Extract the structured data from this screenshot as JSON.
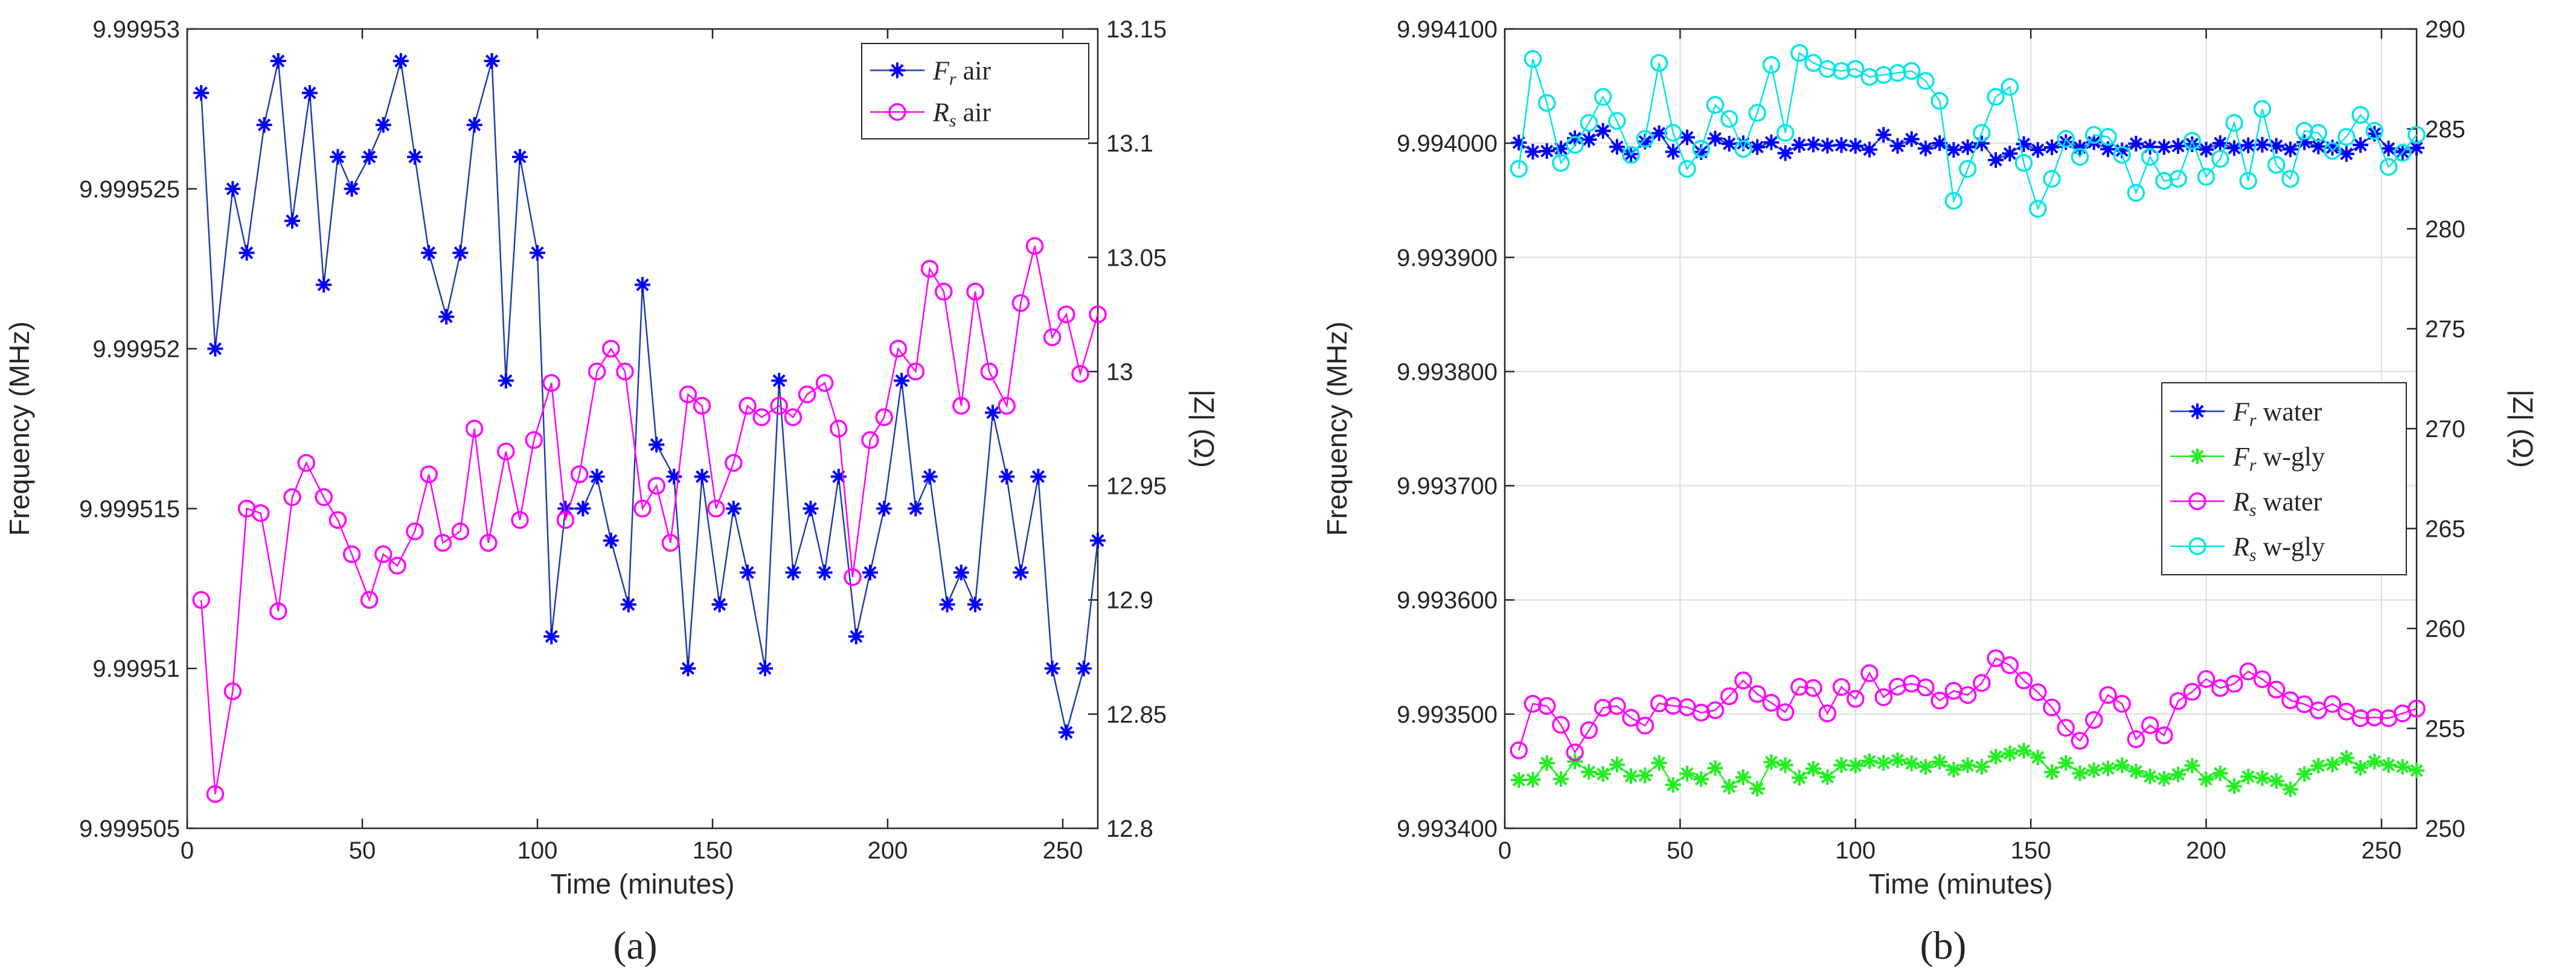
{
  "chart_data": [
    {
      "panel": "a",
      "type": "line",
      "xlabel": "Time (minutes)",
      "ylabel": "Frequency (MHz)",
      "y2label": "|Z| (Ω)",
      "xlim": [
        0,
        260
      ],
      "ylim": [
        9.999505,
        9.99953
      ],
      "y2lim": [
        12.8,
        13.15
      ],
      "xticks": [
        0,
        50,
        100,
        150,
        200,
        250
      ],
      "yticks": [
        9.999505,
        9.99951,
        9.999515,
        9.99952,
        9.999525,
        9.99953
      ],
      "ytick_labels": [
        "9.999505",
        "9.99951",
        "9.999515",
        "9.99952",
        "9.999525",
        "9.99953"
      ],
      "y2ticks": [
        12.8,
        12.85,
        12.9,
        12.95,
        13,
        13.05,
        13.1,
        13.15
      ],
      "y2tick_labels": [
        "12.8",
        "12.85",
        "12.9",
        "12.95",
        "13",
        "13.05",
        "13.1",
        "13.15"
      ],
      "grid": false,
      "legend_position": "top-right",
      "series": [
        {
          "name": "F_r air",
          "legend_main": "F",
          "legend_sub": "r",
          "legend_rest": " air",
          "axis": "left",
          "color": "#0000ff",
          "line_color": "#1f3fa8",
          "marker": "asterisk",
          "x": [
            4,
            8,
            13,
            17,
            22,
            26,
            30,
            35,
            39,
            43,
            47,
            52,
            56,
            61,
            65,
            69,
            74,
            78,
            82,
            87,
            91,
            95,
            100,
            104,
            108,
            113,
            117,
            121,
            126,
            130,
            134,
            139,
            143,
            147,
            152,
            156,
            160,
            165,
            169,
            173,
            178,
            182,
            186,
            191,
            195,
            199,
            204,
            208,
            212,
            217,
            221,
            225,
            230,
            234,
            238,
            243,
            247,
            251,
            256,
            260
          ],
          "y": [
            9.999528,
            9.99952,
            9.999525,
            9.999523,
            9.999527,
            9.999529,
            9.999524,
            9.999528,
            9.999522,
            9.999526,
            9.999525,
            9.999526,
            9.999527,
            9.999529,
            9.999526,
            9.999523,
            9.999521,
            9.999523,
            9.999527,
            9.999529,
            9.999519,
            9.999526,
            9.999523,
            9.999511,
            9.999515,
            9.999515,
            9.999516,
            9.999514,
            9.999512,
            9.999522,
            9.999517,
            9.999516,
            9.99951,
            9.999516,
            9.999512,
            9.999515,
            9.999513,
            9.99951,
            9.999519,
            9.999513,
            9.999515,
            9.999513,
            9.999516,
            9.999511,
            9.999513,
            9.999515,
            9.999519,
            9.999515,
            9.999516,
            9.999512,
            9.999513,
            9.999512,
            9.999518,
            9.999516,
            9.999513,
            9.999516,
            9.99951,
            9.999508,
            9.99951,
            9.999514
          ]
        },
        {
          "name": "R_s air",
          "legend_main": "R",
          "legend_sub": "s",
          "legend_rest": " air",
          "axis": "right",
          "color": "#ff00ff",
          "line_color": "#ff00ff",
          "marker": "circle",
          "x": [
            4,
            8,
            13,
            17,
            21,
            26,
            30,
            34,
            39,
            43,
            47,
            52,
            56,
            60,
            65,
            69,
            73,
            78,
            82,
            86,
            91,
            95,
            99,
            104,
            108,
            112,
            117,
            121,
            125,
            130,
            134,
            138,
            143,
            147,
            151,
            156,
            160,
            164,
            169,
            173,
            177,
            182,
            186,
            190,
            195,
            199,
            203,
            208,
            212,
            216,
            221,
            225,
            229,
            234,
            238,
            242,
            247,
            251,
            255,
            260
          ],
          "y": [
            12.9,
            12.815,
            12.86,
            12.94,
            12.938,
            12.895,
            12.945,
            12.96,
            12.945,
            12.935,
            12.92,
            12.9,
            12.92,
            12.915,
            12.93,
            12.955,
            12.925,
            12.93,
            12.975,
            12.925,
            12.965,
            12.935,
            12.97,
            12.995,
            12.935,
            12.955,
            13.0,
            13.01,
            13.0,
            12.94,
            12.95,
            12.925,
            12.99,
            12.985,
            12.94,
            12.96,
            12.985,
            12.98,
            12.985,
            12.98,
            12.99,
            12.995,
            12.975,
            12.91,
            12.97,
            12.98,
            13.01,
            13.0,
            13.045,
            13.035,
            12.985,
            13.035,
            13.0,
            12.985,
            13.03,
            13.055,
            13.015,
            13.025,
            12.999,
            13.025
          ]
        }
      ]
    },
    {
      "panel": "b",
      "type": "line",
      "xlabel": "Time (minutes)",
      "ylabel": "Frequency (MHz)",
      "y2label": "|Z| (Ω)",
      "xlim": [
        0,
        260
      ],
      "ylim": [
        9.9934,
        9.9941
      ],
      "y2lim": [
        250,
        290
      ],
      "xticks": [
        0,
        50,
        100,
        150,
        200,
        250
      ],
      "yticks": [
        9.9934,
        9.9935,
        9.9936,
        9.9937,
        9.9938,
        9.9939,
        9.994,
        9.9941
      ],
      "ytick_labels": [
        "9.993400",
        "9.993500",
        "9.993600",
        "9.993700",
        "9.993800",
        "9.993900",
        "9.994000",
        "9.994100"
      ],
      "y2ticks": [
        250,
        255,
        260,
        265,
        270,
        275,
        280,
        285,
        290
      ],
      "y2tick_labels": [
        "250",
        "255",
        "260",
        "265",
        "270",
        "275",
        "280",
        "285",
        "290"
      ],
      "grid": true,
      "legend_position": "middle-right",
      "series": [
        {
          "name": "F_r water",
          "legend_main": "F",
          "legend_sub": "r",
          "legend_rest": " water",
          "axis": "left",
          "color": "#0000ff",
          "line_color": "#1f3fa8",
          "marker": "asterisk",
          "x": [
            4,
            8,
            12,
            16,
            20,
            24,
            28,
            32,
            36,
            40,
            44,
            48,
            52,
            56,
            60,
            64,
            68,
            72,
            76,
            80,
            84,
            88,
            92,
            96,
            100,
            104,
            108,
            112,
            116,
            120,
            124,
            128,
            132,
            136,
            140,
            144,
            148,
            152,
            156,
            160,
            164,
            168,
            172,
            176,
            180,
            184,
            188,
            192,
            196,
            200,
            204,
            208,
            212,
            216,
            220,
            224,
            228,
            232,
            236,
            240,
            244,
            248,
            252,
            256,
            260
          ],
          "y": [
            9.9940005,
            9.9939925,
            9.9939931,
            9.9939953,
            9.9940043,
            9.9940031,
            9.9940108,
            9.9939968,
            9.9939904,
            9.9940014,
            9.9940087,
            9.9939925,
            9.9940051,
            9.9939922,
            9.9940041,
            9.9939995,
            9.9939999,
            9.9939966,
            9.9940007,
            9.9939913,
            9.9939985,
            9.9939988,
            9.9939978,
            9.9939983,
            9.9939976,
            9.9939944,
            9.9940073,
            9.9939976,
            9.9940036,
            9.9939954,
            9.994,
            9.9939941,
            9.9939965,
            9.9939998,
            9.9939852,
            9.9939909,
            9.9939992,
            9.9939941,
            9.9939964,
            9.994001,
            9.9939961,
            9.9940008,
            9.9939947,
            9.9939936,
            9.9939996,
            9.9939968,
            9.9939966,
            9.9939975,
            9.9939991,
            9.9939944,
            9.994,
            9.9939957,
            9.9939981,
            9.9939986,
            9.9939977,
            9.9939946,
            9.9940008,
            9.9939971,
            9.9939961,
            9.9939906,
            9.9939984,
            9.9940083,
            9.9939953,
            9.9939923,
            9.9939959
          ]
        },
        {
          "name": "F_r w-gly",
          "legend_main": "F",
          "legend_sub": "r",
          "legend_rest": " w-gly",
          "axis": "left",
          "color": "#22ee22",
          "line_color": "#22ee22",
          "marker": "asterisk",
          "x": [
            4,
            8,
            12,
            16,
            20,
            24,
            28,
            32,
            36,
            40,
            44,
            48,
            52,
            56,
            60,
            64,
            68,
            72,
            76,
            80,
            84,
            88,
            92,
            96,
            100,
            104,
            108,
            112,
            116,
            120,
            124,
            128,
            132,
            136,
            140,
            144,
            148,
            152,
            156,
            160,
            164,
            168,
            172,
            176,
            180,
            184,
            188,
            192,
            196,
            200,
            204,
            208,
            212,
            216,
            220,
            224,
            228,
            232,
            236,
            240,
            244,
            248,
            252,
            256,
            260
          ],
          "y": [
            9.9934423,
            9.9934426,
            9.9934571,
            9.9934432,
            9.9934585,
            9.9934494,
            9.9934475,
            9.9934558,
            9.9934457,
            9.9934463,
            9.9934573,
            9.9934381,
            9.9934479,
            9.9934431,
            9.9934527,
            9.9934365,
            9.9934447,
            9.9934347,
            9.993458,
            9.9934553,
            9.9934443,
            9.9934522,
            9.9934448,
            9.9934554,
            9.9934549,
            9.9934588,
            9.9934573,
            9.9934597,
            9.9934568,
            9.9934538,
            9.9934582,
            9.9934513,
            9.9934552,
            9.9934539,
            9.9934627,
            9.9934655,
            9.993468,
            9.993462,
            9.9934492,
            9.9934573,
            9.9934482,
            9.9934509,
            9.9934525,
            9.9934552,
            9.9934499,
            9.9934454,
            9.9934435,
            9.9934472,
            9.9934549,
            9.9934428,
            9.9934481,
            9.9934369,
            9.9934453,
            9.993444,
            9.9934414,
            9.9934342,
            9.9934475,
            9.9934548,
            9.9934559,
            9.9934616,
            9.9934531,
            9.9934585,
            9.9934554,
            9.9934539,
            9.9934506
          ]
        },
        {
          "name": "R_s water",
          "legend_main": "R",
          "legend_sub": "s",
          "legend_rest": " water",
          "axis": "right",
          "color": "#ff00ff",
          "line_color": "#ff00ff",
          "marker": "circle",
          "x": [
            4,
            8,
            12,
            16,
            20,
            24,
            28,
            32,
            36,
            40,
            44,
            48,
            52,
            56,
            60,
            64,
            68,
            72,
            76,
            80,
            84,
            88,
            92,
            96,
            100,
            104,
            108,
            112,
            116,
            120,
            124,
            128,
            132,
            136,
            140,
            144,
            148,
            152,
            156,
            160,
            164,
            168,
            172,
            176,
            180,
            184,
            188,
            192,
            196,
            200,
            204,
            208,
            212,
            216,
            220,
            224,
            228,
            232,
            236,
            240,
            244,
            248,
            252,
            256,
            260
          ],
          "y": [
            253.9,
            256.23,
            256.12,
            255.18,
            253.8,
            254.91,
            256.03,
            256.12,
            255.53,
            255.14,
            256.25,
            256.13,
            256.06,
            255.79,
            255.91,
            256.61,
            257.4,
            256.72,
            256.28,
            255.81,
            257.08,
            257.02,
            255.75,
            257.07,
            256.48,
            257.76,
            256.56,
            257.09,
            257.24,
            257.05,
            256.39,
            256.88,
            256.67,
            257.27,
            258.51,
            258.16,
            257.4,
            256.81,
            256.05,
            255.03,
            254.38,
            255.42,
            256.67,
            256.23,
            254.46,
            255.16,
            254.65,
            256.37,
            256.83,
            257.47,
            257.02,
            257.23,
            257.85,
            257.46,
            256.94,
            256.41,
            256.21,
            255.9,
            256.22,
            255.84,
            255.51,
            255.55,
            255.51,
            255.75,
            255.99
          ]
        },
        {
          "name": "R_s w-gly",
          "legend_main": "R",
          "legend_sub": "s",
          "legend_rest": " w-gly",
          "axis": "right",
          "color": "#00e5e5",
          "line_color": "#00e5e5",
          "marker": "circle",
          "x": [
            4,
            8,
            12,
            16,
            20,
            24,
            28,
            32,
            36,
            40,
            44,
            48,
            52,
            56,
            60,
            64,
            68,
            72,
            76,
            80,
            84,
            88,
            92,
            96,
            100,
            104,
            108,
            112,
            116,
            120,
            124,
            128,
            132,
            136,
            140,
            144,
            148,
            152,
            156,
            160,
            164,
            168,
            172,
            176,
            180,
            184,
            188,
            192,
            196,
            200,
            204,
            208,
            212,
            216,
            220,
            224,
            228,
            232,
            236,
            240,
            244,
            248,
            252,
            256,
            260
          ],
          "y": [
            283.0,
            288.5,
            286.3,
            283.3,
            284.2,
            285.3,
            286.6,
            285.4,
            283.7,
            284.5,
            288.3,
            284.8,
            283.0,
            284.0,
            286.2,
            285.5,
            284.0,
            285.8,
            288.2,
            284.8,
            288.8,
            288.3,
            288.0,
            287.9,
            288.0,
            287.6,
            287.7,
            287.8,
            287.9,
            287.4,
            286.4,
            281.4,
            283.0,
            284.8,
            286.6,
            287.1,
            283.3,
            281.0,
            282.5,
            284.5,
            283.6,
            284.7,
            284.6,
            283.7,
            281.8,
            283.6,
            282.4,
            282.5,
            284.4,
            282.6,
            283.5,
            285.3,
            282.4,
            286.0,
            283.2,
            282.5,
            284.9,
            284.8,
            283.9,
            284.6,
            285.7,
            284.9,
            283.1,
            283.8,
            284.7
          ]
        }
      ]
    }
  ],
  "panel_labels": [
    "(a)",
    "(b)"
  ]
}
